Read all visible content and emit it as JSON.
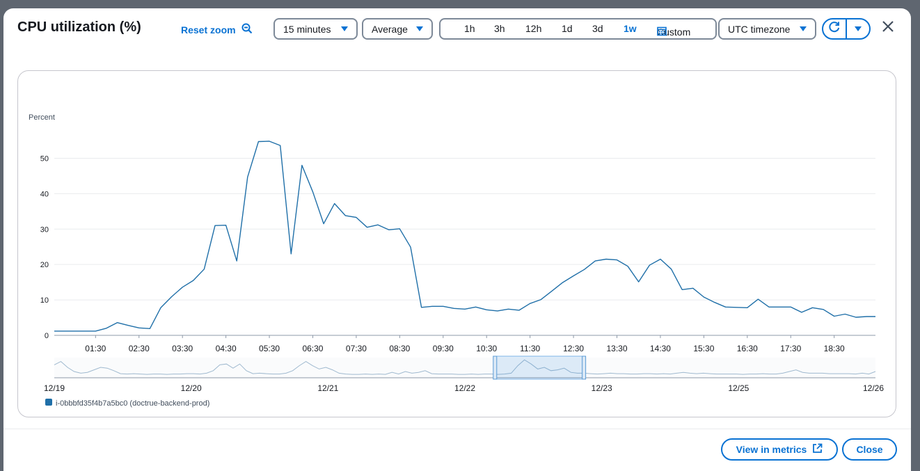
{
  "title": "CPU utilization (%)",
  "reset_zoom": "Reset zoom",
  "period": "15 minutes",
  "statistic": "Average",
  "ranges": [
    "1h",
    "3h",
    "12h",
    "1d",
    "3d",
    "1w"
  ],
  "active_range": "1w",
  "custom": "Custom",
  "timezone": "UTC timezone",
  "buttons": {
    "view_in_metrics": "View in metrics",
    "close": "Close"
  },
  "colors": {
    "accent": "#0972d3",
    "series": "#1f6fa8",
    "border": "#7d8998"
  },
  "icons": [
    "zoom-out-icon",
    "caret-down-icon",
    "calendar-icon",
    "refresh-icon",
    "close-icon",
    "external-link-icon"
  ],
  "chart_data": {
    "type": "line",
    "ylabel": "Percent",
    "ylim": [
      0,
      55
    ],
    "yticks": [
      0,
      10,
      20,
      30,
      40,
      50
    ],
    "xlim": [
      0.55,
      19.45
    ],
    "xticks": [
      1.5,
      2.5,
      3.5,
      4.5,
      5.5,
      6.5,
      7.5,
      8.5,
      9.5,
      10.5,
      11.5,
      12.5,
      13.5,
      14.5,
      15.5,
      16.5,
      17.5,
      18.5
    ],
    "xtick_labels": [
      "01:30",
      "02:30",
      "03:30",
      "04:30",
      "05:30",
      "06:30",
      "07:30",
      "08:30",
      "09:30",
      "10:30",
      "11:30",
      "12:30",
      "13:30",
      "14:30",
      "15:30",
      "16:30",
      "17:30",
      "18:30"
    ],
    "grid": true,
    "series": [
      {
        "name": "i-0bbbfd35f4b7a5bc0 (doctrue-backend-prod)",
        "x": [
          0.55,
          0.8,
          1.0,
          1.25,
          1.5,
          1.75,
          2.0,
          2.25,
          2.5,
          2.75,
          3.0,
          3.25,
          3.5,
          3.75,
          4.0,
          4.25,
          4.5,
          4.75,
          5.0,
          5.25,
          5.5,
          5.75,
          6.0,
          6.25,
          6.5,
          6.75,
          7.0,
          7.25,
          7.5,
          7.75,
          8.0,
          8.25,
          8.5,
          8.75,
          9.0,
          9.25,
          9.5,
          9.75,
          10.0,
          10.25,
          10.5,
          10.75,
          11.0,
          11.25,
          11.5,
          11.75,
          12.0,
          12.25,
          12.5,
          12.75,
          13.0,
          13.25,
          13.5,
          13.75,
          14.0,
          14.25,
          14.5,
          14.75,
          15.0,
          15.25,
          15.5,
          15.75,
          16.0,
          16.25,
          16.5,
          16.75,
          17.0,
          17.25,
          17.5,
          17.75,
          18.0,
          18.25,
          18.5,
          18.75,
          19.0,
          19.25,
          19.45
        ],
        "y": [
          1.2,
          1.2,
          1.2,
          1.2,
          1.2,
          2.0,
          3.6,
          2.8,
          2.1,
          1.9,
          7.8,
          10.9,
          13.6,
          15.5,
          18.7,
          31.0,
          31.1,
          21.0,
          44.7,
          54.7,
          54.8,
          53.6,
          23.0,
          48.0,
          40.5,
          31.5,
          37.2,
          33.8,
          33.3,
          30.5,
          31.2,
          29.8,
          30.1,
          24.9,
          7.9,
          8.2,
          8.2,
          7.6,
          7.4,
          8.0,
          7.2,
          6.9,
          7.4,
          7.1,
          9.0,
          10.1,
          12.5,
          14.9,
          16.8,
          18.6,
          21.0,
          21.5,
          21.3,
          19.5,
          15.1,
          19.8,
          21.5,
          18.7,
          12.9,
          13.3,
          10.8,
          9.3,
          8.0,
          7.9,
          7.8,
          10.2,
          8.0,
          8.0,
          8.0,
          6.5,
          7.8,
          7.3,
          5.4,
          6.0,
          5.1,
          5.3,
          5.3
        ]
      }
    ],
    "overview": {
      "date_labels": [
        "12/19",
        "12/20",
        "12/21",
        "12/22",
        "12/23",
        "12/25",
        "12/26"
      ],
      "selection_days": [
        3.22,
        3.87
      ],
      "profile": [
        0.65,
        0.85,
        0.5,
        0.25,
        0.15,
        0.2,
        0.35,
        0.5,
        0.45,
        0.3,
        0.12,
        0.1,
        0.12,
        0.1,
        0.08,
        0.1,
        0.1,
        0.08,
        0.1,
        0.1,
        0.12,
        0.12,
        0.1,
        0.15,
        0.3,
        0.65,
        0.7,
        0.45,
        0.7,
        0.3,
        0.12,
        0.15,
        0.12,
        0.1,
        0.1,
        0.15,
        0.3,
        0.6,
        0.85,
        0.6,
        0.4,
        0.5,
        0.35,
        0.15,
        0.1,
        0.08,
        0.08,
        0.1,
        0.08,
        0.1,
        0.08,
        0.2,
        0.1,
        0.25,
        0.15,
        0.2,
        0.3,
        0.12,
        0.1,
        0.1,
        0.1,
        0.08,
        0.08,
        0.1,
        0.08,
        0.1,
        0.1,
        0.08,
        0.1,
        0.15,
        0.6,
        0.95,
        0.7,
        0.4,
        0.5,
        0.3,
        0.35,
        0.45,
        0.2,
        0.15,
        0.15,
        0.12,
        0.1,
        0.12,
        0.15,
        0.12,
        0.12,
        0.1,
        0.1,
        0.12,
        0.12,
        0.1,
        0.12,
        0.1,
        0.15,
        0.2,
        0.15,
        0.12,
        0.15,
        0.12,
        0.1,
        0.1,
        0.1,
        0.1,
        0.08,
        0.1,
        0.1,
        0.12,
        0.1,
        0.1,
        0.15,
        0.25,
        0.35,
        0.2,
        0.15,
        0.15,
        0.15,
        0.12,
        0.12,
        0.12,
        0.12,
        0.1,
        0.15,
        0.1,
        0.25
      ]
    }
  }
}
